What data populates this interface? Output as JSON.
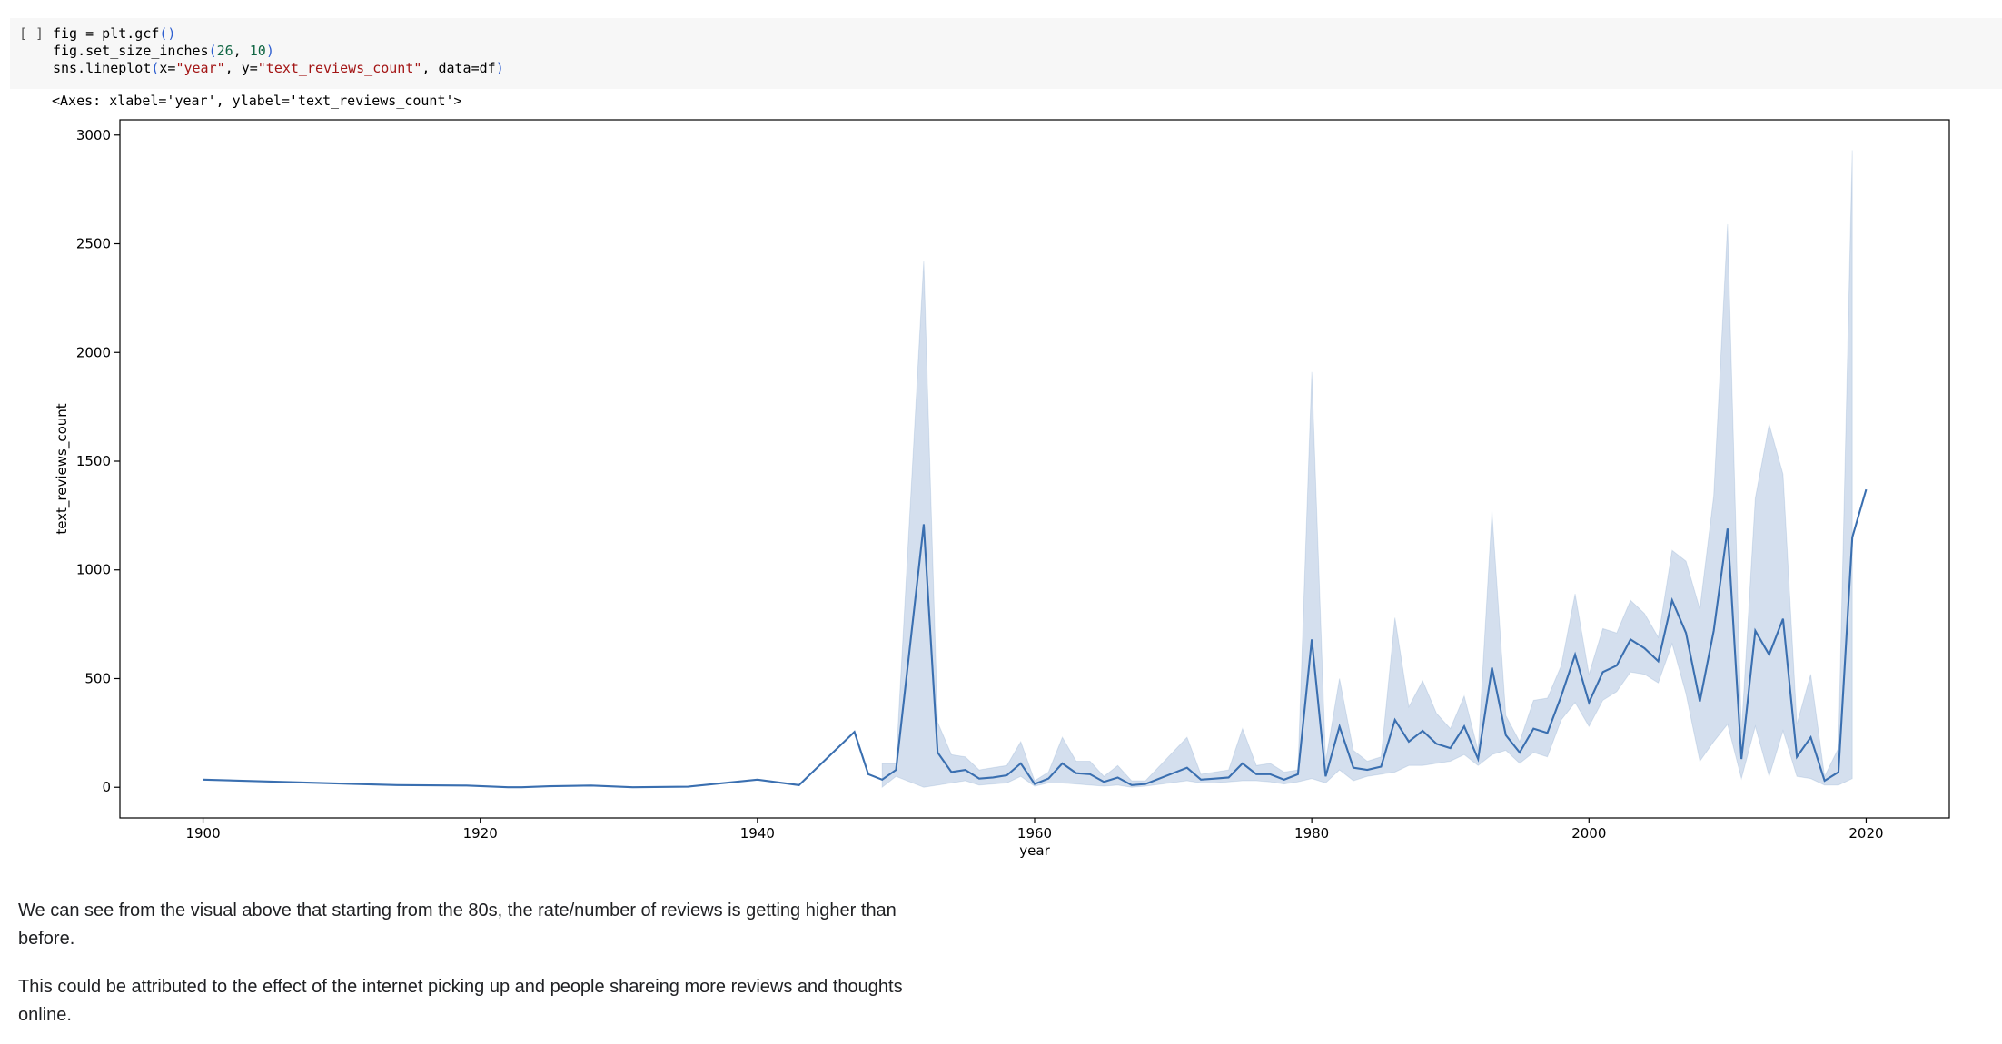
{
  "cell_prompt": "[ ]",
  "code_lines": [
    [
      {
        "text": "fig = plt.gcf",
        "color": "#000000"
      },
      {
        "text": "()",
        "color": "#2e5fd0"
      }
    ],
    [
      {
        "text": "fig.set_size_inches",
        "color": "#000000"
      },
      {
        "text": "(",
        "color": "#2e5fd0"
      },
      {
        "text": "26",
        "color": "#116644"
      },
      {
        "text": ", ",
        "color": "#000000"
      },
      {
        "text": "10",
        "color": "#116644"
      },
      {
        "text": ")",
        "color": "#2e5fd0"
      }
    ],
    [
      {
        "text": "sns.lineplot",
        "color": "#000000"
      },
      {
        "text": "(",
        "color": "#2e5fd0"
      },
      {
        "text": "x=",
        "color": "#000000"
      },
      {
        "text": "\"year\"",
        "color": "#a31515"
      },
      {
        "text": ", y=",
        "color": "#000000"
      },
      {
        "text": "\"text_reviews_count\"",
        "color": "#a31515"
      },
      {
        "text": ", data=df",
        "color": "#000000"
      },
      {
        "text": ")",
        "color": "#2e5fd0"
      }
    ]
  ],
  "output_text": "<Axes: xlabel='year', ylabel='text_reviews_count'>",
  "chart_data": {
    "type": "line",
    "xlabel": "year",
    "ylabel": "text_reviews_count",
    "xlim": [
      1894,
      2026
    ],
    "ylim": [
      -141,
      3070
    ],
    "xticks": [
      1900,
      1920,
      1940,
      1960,
      1980,
      2000,
      2020
    ],
    "yticks": [
      0,
      500,
      1000,
      1500,
      2000,
      2500,
      3000
    ],
    "x": [
      1900,
      1914,
      1919,
      1922,
      1923,
      1925,
      1928,
      1931,
      1935,
      1940,
      1943,
      1947,
      1948,
      1949,
      1950,
      1952,
      1953,
      1954,
      1955,
      1956,
      1957,
      1958,
      1959,
      1960,
      1961,
      1962,
      1963,
      1964,
      1965,
      1966,
      1967,
      1968,
      1971,
      1972,
      1973,
      1974,
      1975,
      1976,
      1977,
      1978,
      1979,
      1980,
      1981,
      1982,
      1983,
      1984,
      1985,
      1986,
      1987,
      1988,
      1989,
      1990,
      1991,
      1992,
      1993,
      1994,
      1995,
      1996,
      1997,
      1998,
      1999,
      2000,
      2001,
      2002,
      2003,
      2004,
      2005,
      2006,
      2007,
      2008,
      2009,
      2010,
      2011,
      2012,
      2013,
      2014,
      2015,
      2016,
      2017,
      2018,
      2019,
      2020
    ],
    "series": [
      {
        "color": "#3a6fb0",
        "values": [
          35,
          10,
          8,
          0,
          0,
          5,
          8,
          0,
          3,
          35,
          10,
          255,
          60,
          35,
          80,
          1210,
          160,
          70,
          80,
          40,
          45,
          55,
          110,
          15,
          40,
          110,
          65,
          60,
          25,
          45,
          10,
          15,
          90,
          35,
          40,
          45,
          110,
          60,
          60,
          35,
          60,
          680,
          50,
          280,
          90,
          80,
          95,
          310,
          210,
          260,
          200,
          180,
          280,
          130,
          550,
          240,
          160,
          270,
          250,
          420,
          610,
          390,
          530,
          560,
          680,
          640,
          580,
          860,
          710,
          395,
          720,
          1190,
          130,
          720,
          610,
          775,
          140,
          230,
          30,
          70,
          1150,
          1370
        ],
        "lower": [
          null,
          null,
          null,
          null,
          null,
          null,
          null,
          null,
          null,
          null,
          null,
          null,
          null,
          0,
          50,
          0,
          10,
          20,
          30,
          10,
          15,
          20,
          50,
          5,
          20,
          20,
          15,
          10,
          5,
          10,
          0,
          5,
          30,
          20,
          20,
          25,
          30,
          30,
          25,
          15,
          25,
          40,
          20,
          80,
          30,
          50,
          60,
          70,
          100,
          100,
          110,
          120,
          150,
          100,
          150,
          170,
          110,
          160,
          140,
          310,
          390,
          280,
          400,
          440,
          530,
          520,
          480,
          660,
          430,
          120,
          210,
          290,
          40,
          280,
          50,
          260,
          50,
          40,
          10,
          10,
          40,
          null
        ],
        "upper": [
          null,
          null,
          null,
          null,
          null,
          null,
          null,
          null,
          null,
          null,
          null,
          null,
          null,
          110,
          110,
          2420,
          300,
          150,
          140,
          80,
          90,
          100,
          210,
          30,
          70,
          230,
          120,
          120,
          50,
          100,
          30,
          30,
          230,
          60,
          70,
          80,
          270,
          100,
          110,
          70,
          80,
          1910,
          120,
          500,
          170,
          120,
          140,
          780,
          370,
          490,
          340,
          270,
          420,
          170,
          1270,
          330,
          210,
          400,
          410,
          560,
          890,
          520,
          730,
          710,
          860,
          800,
          690,
          1090,
          1040,
          820,
          1340,
          2590,
          250,
          1330,
          1670,
          1440,
          290,
          520,
          50,
          180,
          2930,
          null
        ]
      }
    ]
  },
  "markdown": [
    "We can see from the visual above that starting from the 80s, the rate/number of reviews is getting higher than before.",
    "This could be attributed to the effect of the internet picking up and people shareing more reviews and thoughts online."
  ]
}
